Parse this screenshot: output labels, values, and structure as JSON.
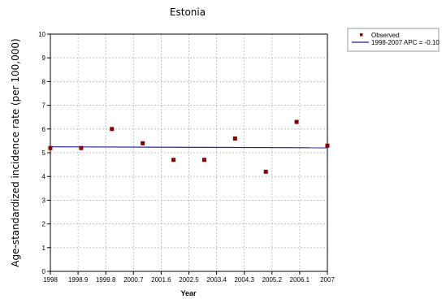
{
  "chart_data": {
    "type": "scatter",
    "title": "Estonia",
    "xlabel": "Year",
    "ylabel": "Age-standardized incidence rate (per 100,000)",
    "xlim": [
      1998,
      2007
    ],
    "ylim": [
      0,
      10
    ],
    "x_ticks": [
      "1998",
      "1998.9",
      "1999.8",
      "2000.7",
      "2001.6",
      "2002.5",
      "2003.4",
      "2004.3",
      "2005.2",
      "2006.1",
      "2007"
    ],
    "y_ticks": [
      "0",
      "1",
      "2",
      "3",
      "4",
      "5",
      "6",
      "7",
      "8",
      "9",
      "10"
    ],
    "grid": true,
    "legend_position": "top-right",
    "series": [
      {
        "name": "Observed",
        "kind": "markers",
        "color": "#8b0000",
        "x": [
          1998,
          1999,
          2000,
          2001,
          2002,
          2003,
          2004,
          2005,
          2006,
          2007
        ],
        "y": [
          5.2,
          5.2,
          6.0,
          5.4,
          4.7,
          4.7,
          5.6,
          4.2,
          6.3,
          5.3
        ]
      },
      {
        "name": "1998-2007 APC  = -0.10",
        "kind": "line",
        "color": "#1f1f9e",
        "x": [
          1998,
          2007
        ],
        "y": [
          5.25,
          5.21
        ]
      }
    ]
  }
}
